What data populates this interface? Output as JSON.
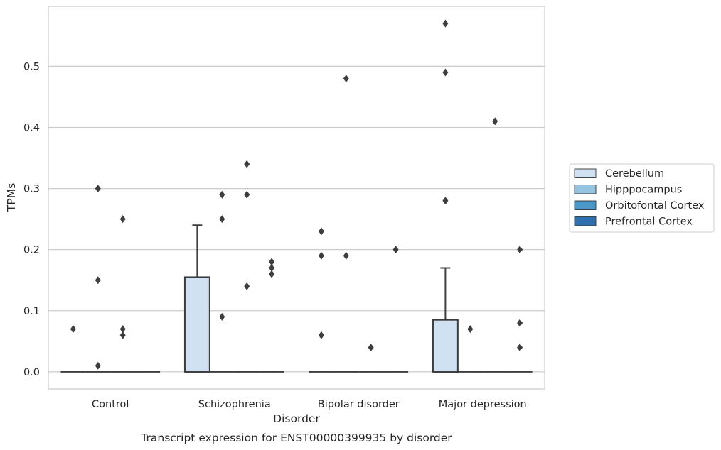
{
  "chart_data": {
    "type": "box",
    "caption": "Transcript expression for ENST00000399935 by disorder",
    "xlabel": "Disorder",
    "ylabel": "TPMs",
    "ylim": [
      -0.028,
      0.598
    ],
    "y_ticks": [
      "0.0",
      "0.1",
      "0.2",
      "0.3",
      "0.4",
      "0.5"
    ],
    "grid": true,
    "legend_position": "right",
    "categories": [
      "Control",
      "Schizophrenia",
      "Bipolar disorder",
      "Major depression"
    ],
    "series": [
      {
        "name": "Cerebellum",
        "color": "#d0e1f2"
      },
      {
        "name": "Hipppocampus",
        "color": "#94c4df"
      },
      {
        "name": "Orbitofontal Cortex",
        "color": "#4a98c9"
      },
      {
        "name": "Prefrontal Cortex",
        "color": "#2e6fae"
      }
    ],
    "boxes": [
      {
        "category": 0,
        "series": 0,
        "q1": 0,
        "median": 0,
        "q3": 0,
        "whislo": 0,
        "whishi": 0,
        "fliers": [
          0.07
        ]
      },
      {
        "category": 0,
        "series": 1,
        "q1": 0,
        "median": 0,
        "q3": 0,
        "whislo": 0,
        "whishi": 0,
        "fliers": [
          0.3,
          0.15,
          0.01
        ]
      },
      {
        "category": 0,
        "series": 2,
        "q1": 0,
        "median": 0,
        "q3": 0,
        "whislo": 0,
        "whishi": 0,
        "fliers": [
          0.25,
          0.07,
          0.06
        ]
      },
      {
        "category": 0,
        "series": 3,
        "q1": 0,
        "median": 0,
        "q3": 0,
        "whislo": 0,
        "whishi": 0,
        "fliers": []
      },
      {
        "category": 1,
        "series": 0,
        "q1": 0,
        "median": 0,
        "q3": 0.155,
        "whislo": 0,
        "whishi": 0.24,
        "fliers": []
      },
      {
        "category": 1,
        "series": 1,
        "q1": 0,
        "median": 0,
        "q3": 0,
        "whislo": 0,
        "whishi": 0,
        "fliers": [
          0.29,
          0.25,
          0.09
        ]
      },
      {
        "category": 1,
        "series": 2,
        "q1": 0,
        "median": 0,
        "q3": 0,
        "whislo": 0,
        "whishi": 0,
        "fliers": [
          0.34,
          0.29,
          0.14
        ]
      },
      {
        "category": 1,
        "series": 3,
        "q1": 0,
        "median": 0,
        "q3": 0,
        "whislo": 0,
        "whishi": 0,
        "fliers": [
          0.18,
          0.17,
          0.16
        ]
      },
      {
        "category": 2,
        "series": 0,
        "q1": 0,
        "median": 0,
        "q3": 0,
        "whislo": 0,
        "whishi": 0,
        "fliers": [
          0.23,
          0.19,
          0.06
        ]
      },
      {
        "category": 2,
        "series": 1,
        "q1": 0,
        "median": 0,
        "q3": 0,
        "whislo": 0,
        "whishi": 0,
        "fliers": [
          0.48,
          0.19
        ]
      },
      {
        "category": 2,
        "series": 2,
        "q1": 0,
        "median": 0,
        "q3": 0,
        "whislo": 0,
        "whishi": 0,
        "fliers": [
          0.04
        ]
      },
      {
        "category": 2,
        "series": 3,
        "q1": 0,
        "median": 0,
        "q3": 0,
        "whislo": 0,
        "whishi": 0,
        "fliers": [
          0.2
        ]
      },
      {
        "category": 3,
        "series": 0,
        "q1": 0,
        "median": 0,
        "q3": 0.085,
        "whislo": 0,
        "whishi": 0.17,
        "fliers": [
          0.57,
          0.49,
          0.28
        ]
      },
      {
        "category": 3,
        "series": 1,
        "q1": 0,
        "median": 0,
        "q3": 0,
        "whislo": 0,
        "whishi": 0,
        "fliers": [
          0.07
        ]
      },
      {
        "category": 3,
        "series": 2,
        "q1": 0,
        "median": 0,
        "q3": 0,
        "whislo": 0,
        "whishi": 0,
        "fliers": [
          0.41
        ]
      },
      {
        "category": 3,
        "series": 3,
        "q1": 0,
        "median": 0,
        "q3": 0,
        "whislo": 0,
        "whishi": 0,
        "fliers": [
          0.2,
          0.08,
          0.04
        ]
      }
    ]
  }
}
